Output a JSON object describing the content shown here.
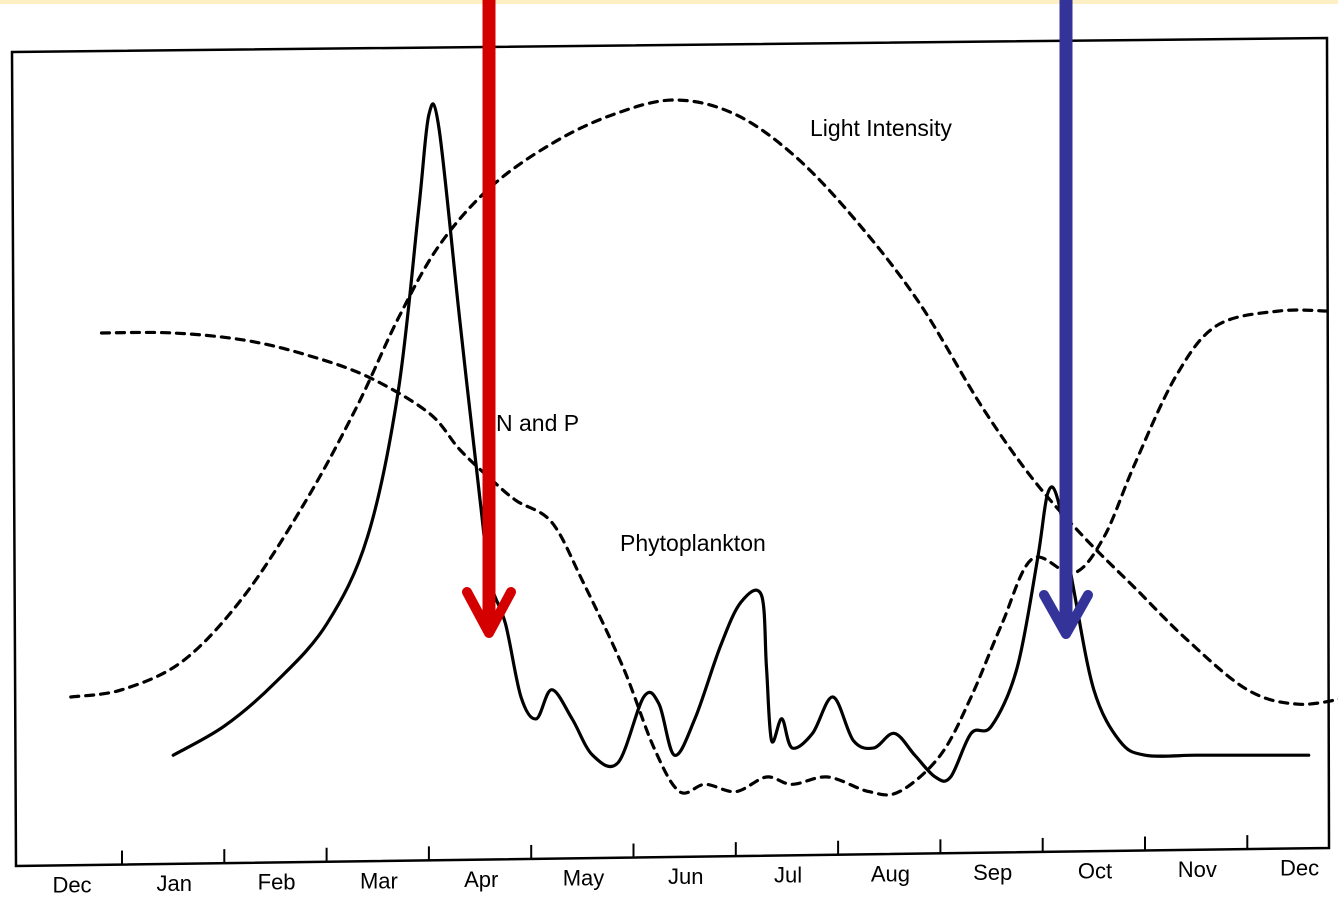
{
  "chart_data": {
    "type": "line",
    "title": "",
    "xlabel": "",
    "ylabel": "",
    "categories": [
      "Dec",
      "Jan",
      "Feb",
      "Mar",
      "Apr",
      "May",
      "Jun",
      "Jul",
      "Aug",
      "Sep",
      "Oct",
      "Nov",
      "Dec"
    ],
    "xlim": [
      0,
      12
    ],
    "ylim": [
      0,
      100
    ],
    "grid": false,
    "legend": "none",
    "y_axis_ticks": false,
    "series": [
      {
        "name": "Light Intensity",
        "style": "dashed",
        "color": "#000000",
        "points": [
          [
            -0.5,
            18
          ],
          [
            0,
            19
          ],
          [
            0.6,
            23
          ],
          [
            1.2,
            32
          ],
          [
            1.8,
            45
          ],
          [
            2.3,
            58
          ],
          [
            2.7,
            70
          ],
          [
            3.1,
            80
          ],
          [
            3.6,
            88
          ],
          [
            4.2,
            94
          ],
          [
            4.8,
            98
          ],
          [
            5.4,
            100
          ],
          [
            6.0,
            98
          ],
          [
            6.6,
            92
          ],
          [
            7.2,
            83
          ],
          [
            7.8,
            72
          ],
          [
            8.4,
            58
          ],
          [
            8.9,
            48
          ],
          [
            9.4,
            40
          ],
          [
            9.9,
            33
          ],
          [
            10.4,
            26
          ],
          [
            11.0,
            19
          ],
          [
            11.5,
            17
          ],
          [
            12.0,
            18
          ]
        ]
      },
      {
        "name": "N and P",
        "style": "dashed",
        "color": "#000000",
        "points": [
          [
            -0.2,
            68
          ],
          [
            0.5,
            68
          ],
          [
            1.2,
            67
          ],
          [
            1.8,
            65
          ],
          [
            2.4,
            62
          ],
          [
            3.0,
            57
          ],
          [
            3.3,
            52
          ],
          [
            3.6,
            48
          ],
          [
            3.85,
            45
          ],
          [
            4.2,
            42
          ],
          [
            4.5,
            34
          ],
          [
            4.9,
            22
          ],
          [
            5.2,
            11
          ],
          [
            5.45,
            5
          ],
          [
            5.7,
            6
          ],
          [
            6.0,
            5
          ],
          [
            6.3,
            7
          ],
          [
            6.55,
            6
          ],
          [
            6.9,
            7
          ],
          [
            7.3,
            5
          ],
          [
            7.6,
            5
          ],
          [
            8.0,
            10
          ],
          [
            8.3,
            18
          ],
          [
            8.6,
            28
          ],
          [
            8.9,
            37
          ],
          [
            9.3,
            35
          ],
          [
            9.6,
            40
          ],
          [
            9.9,
            50
          ],
          [
            10.3,
            62
          ],
          [
            10.7,
            69
          ],
          [
            11.3,
            71
          ],
          [
            11.8,
            71
          ]
        ]
      },
      {
        "name": "Phytoplankton",
        "style": "solid",
        "color": "#000000",
        "points": [
          [
            0.5,
            10
          ],
          [
            1.0,
            14
          ],
          [
            1.5,
            20
          ],
          [
            2.0,
            28
          ],
          [
            2.4,
            40
          ],
          [
            2.7,
            60
          ],
          [
            2.9,
            85
          ],
          [
            3.0,
            98
          ],
          [
            3.1,
            96
          ],
          [
            3.3,
            70
          ],
          [
            3.5,
            45
          ],
          [
            3.6,
            34
          ],
          [
            3.75,
            28
          ],
          [
            3.9,
            18
          ],
          [
            4.05,
            15
          ],
          [
            4.2,
            19
          ],
          [
            4.4,
            15
          ],
          [
            4.6,
            10
          ],
          [
            4.85,
            9
          ],
          [
            5.1,
            18
          ],
          [
            5.25,
            17
          ],
          [
            5.4,
            10
          ],
          [
            5.6,
            15
          ],
          [
            5.85,
            25
          ],
          [
            6.05,
            31
          ],
          [
            6.25,
            32
          ],
          [
            6.3,
            22
          ],
          [
            6.35,
            12
          ],
          [
            6.45,
            15
          ],
          [
            6.55,
            11
          ],
          [
            6.75,
            13
          ],
          [
            6.95,
            18
          ],
          [
            7.15,
            12
          ],
          [
            7.35,
            11
          ],
          [
            7.55,
            13
          ],
          [
            7.75,
            10
          ],
          [
            7.95,
            7
          ],
          [
            8.1,
            7
          ],
          [
            8.3,
            13
          ],
          [
            8.5,
            14
          ],
          [
            8.75,
            22
          ],
          [
            8.95,
            37
          ],
          [
            9.05,
            46
          ],
          [
            9.15,
            45
          ],
          [
            9.3,
            33
          ],
          [
            9.5,
            19
          ],
          [
            9.75,
            12
          ],
          [
            10.0,
            10
          ],
          [
            10.5,
            10
          ],
          [
            11.0,
            10
          ],
          [
            11.6,
            10
          ]
        ]
      }
    ],
    "annotations": [
      {
        "label": "Light Intensity"
      },
      {
        "label": "N and P"
      },
      {
        "label": "Phytoplankton"
      },
      {
        "type": "arrow",
        "color": "#d40000",
        "x": 3.6,
        "direction": "down"
      },
      {
        "type": "arrow",
        "color": "#333399",
        "x": 9.2,
        "direction": "down"
      }
    ]
  }
}
